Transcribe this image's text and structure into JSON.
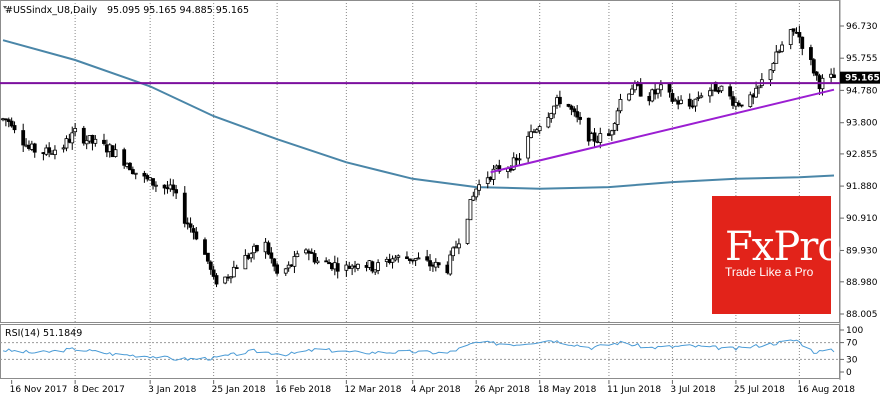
{
  "header": {
    "symbol": "#USSindx_U8,Daily",
    "ohlc": "95.095 95.165 94.885 95.165"
  },
  "rsi_panel": {
    "label": "RSI(14) 51.1849",
    "ticks": [
      "100",
      "70",
      "30",
      "0"
    ]
  },
  "price_axis": {
    "ticks": [
      "96.730",
      "95.755",
      "94.780",
      "93.800",
      "92.855",
      "91.880",
      "90.910",
      "89.930",
      "88.980",
      "88.005"
    ],
    "current_price": "95.165"
  },
  "time_axis": {
    "labels": [
      "16 Nov 2017",
      "8 Dec 2017",
      "3 Jan 2018",
      "25 Jan 2018",
      "16 Feb 2018",
      "12 Mar 2018",
      "4 Apr 2018",
      "26 Apr 2018",
      "18 May 2018",
      "11 Jun 2018",
      "3 Jul 2018",
      "25 Jul 2018",
      "16 Aug 2018"
    ]
  },
  "logo": {
    "brand": "FxPro",
    "tagline": "Trade Like a Pro"
  },
  "colors": {
    "candle": "#000000",
    "ma_line": "#4a86a8",
    "resistance": "#7b0f9e",
    "trendline": "#9b1ed2",
    "rsi_line": "#4a9bd6",
    "logo_bg": "#e2231a",
    "price_badge": "#000000"
  },
  "chart_data": {
    "type": "candlestick",
    "symbol": "#USSindx_U8",
    "timeframe": "Daily",
    "y_range": [
      88.0,
      97.2
    ],
    "date_range": [
      "2017-11-13",
      "2018-08-28"
    ],
    "close_path": [
      [
        "2017-11-13",
        93.9
      ],
      [
        "2017-11-16",
        93.85
      ],
      [
        "2017-11-22",
        93.0
      ],
      [
        "2017-11-28",
        92.9
      ],
      [
        "2017-12-04",
        93.1
      ],
      [
        "2017-12-08",
        93.5
      ],
      [
        "2017-12-14",
        93.2
      ],
      [
        "2017-12-20",
        93.0
      ],
      [
        "2017-12-26",
        92.6
      ],
      [
        "2017-12-30",
        92.2
      ],
      [
        "2018-01-03",
        92.0
      ],
      [
        "2018-01-07",
        91.9
      ],
      [
        "2018-01-11",
        91.7
      ],
      [
        "2018-01-15",
        90.9
      ],
      [
        "2018-01-19",
        90.4
      ],
      [
        "2018-01-23",
        89.6
      ],
      [
        "2018-01-25",
        89.0
      ],
      [
        "2018-01-29",
        89.1
      ],
      [
        "2018-02-02",
        89.5
      ],
      [
        "2018-02-08",
        89.9
      ],
      [
        "2018-02-12",
        90.1
      ],
      [
        "2018-02-16",
        89.2
      ],
      [
        "2018-02-20",
        89.4
      ],
      [
        "2018-02-26",
        90.0
      ],
      [
        "2018-03-02",
        89.6
      ],
      [
        "2018-03-08",
        89.5
      ],
      [
        "2018-03-12",
        89.4
      ],
      [
        "2018-03-16",
        89.6
      ],
      [
        "2018-03-22",
        89.4
      ],
      [
        "2018-03-28",
        89.7
      ],
      [
        "2018-04-04",
        89.7
      ],
      [
        "2018-04-10",
        89.5
      ],
      [
        "2018-04-16",
        89.4
      ],
      [
        "2018-04-20",
        90.3
      ],
      [
        "2018-04-26",
        91.8
      ],
      [
        "2018-04-30",
        92.2
      ],
      [
        "2018-05-04",
        92.4
      ],
      [
        "2018-05-10",
        92.6
      ],
      [
        "2018-05-14",
        93.3
      ],
      [
        "2018-05-18",
        93.8
      ],
      [
        "2018-05-22",
        94.2
      ],
      [
        "2018-05-26",
        94.6
      ],
      [
        "2018-05-30",
        94.0
      ],
      [
        "2018-06-05",
        93.3
      ],
      [
        "2018-06-11",
        93.4
      ],
      [
        "2018-06-15",
        94.5
      ],
      [
        "2018-06-19",
        94.9
      ],
      [
        "2018-06-25",
        94.6
      ],
      [
        "2018-06-29",
        94.8
      ],
      [
        "2018-07-03",
        94.5
      ],
      [
        "2018-07-09",
        94.3
      ],
      [
        "2018-07-13",
        94.7
      ],
      [
        "2018-07-19",
        94.9
      ],
      [
        "2018-07-25",
        94.4
      ],
      [
        "2018-07-31",
        94.5
      ],
      [
        "2018-08-04",
        95.2
      ],
      [
        "2018-08-08",
        95.8
      ],
      [
        "2018-08-12",
        96.4
      ],
      [
        "2018-08-15",
        96.6
      ],
      [
        "2018-08-19",
        95.8
      ],
      [
        "2018-08-23",
        95.0
      ],
      [
        "2018-08-26",
        95.1
      ],
      [
        "2018-08-28",
        95.165
      ]
    ],
    "moving_average": [
      [
        "2017-11-13",
        96.3
      ],
      [
        "2017-12-08",
        95.7
      ],
      [
        "2018-01-03",
        94.9
      ],
      [
        "2018-01-25",
        94.0
      ],
      [
        "2018-02-16",
        93.3
      ],
      [
        "2018-03-12",
        92.6
      ],
      [
        "2018-04-04",
        92.1
      ],
      [
        "2018-04-26",
        91.85
      ],
      [
        "2018-05-18",
        91.8
      ],
      [
        "2018-06-11",
        91.85
      ],
      [
        "2018-07-03",
        92.0
      ],
      [
        "2018-07-25",
        92.1
      ],
      [
        "2018-08-16",
        92.15
      ],
      [
        "2018-08-28",
        92.2
      ]
    ],
    "resistance_level": 95.0,
    "support_trendline": [
      [
        "2018-05-01",
        92.3
      ],
      [
        "2018-08-28",
        94.8
      ]
    ],
    "rsi": {
      "name": "RSI(14)",
      "last": 51.1849,
      "levels": [
        30,
        70
      ],
      "range": [
        0,
        100
      ],
      "path": [
        [
          "2017-11-13",
          52
        ],
        [
          "2017-11-25",
          45
        ],
        [
          "2017-12-08",
          55
        ],
        [
          "2017-12-22",
          42
        ],
        [
          "2018-01-03",
          38
        ],
        [
          "2018-01-13",
          30
        ],
        [
          "2018-01-25",
          33
        ],
        [
          "2018-02-08",
          50
        ],
        [
          "2018-02-20",
          42
        ],
        [
          "2018-03-02",
          54
        ],
        [
          "2018-03-16",
          46
        ],
        [
          "2018-04-04",
          48
        ],
        [
          "2018-04-16",
          45
        ],
        [
          "2018-04-26",
          70
        ],
        [
          "2018-05-10",
          66
        ],
        [
          "2018-05-22",
          76
        ],
        [
          "2018-06-05",
          58
        ],
        [
          "2018-06-15",
          70
        ],
        [
          "2018-06-25",
          58
        ],
        [
          "2018-07-09",
          62
        ],
        [
          "2018-07-25",
          55
        ],
        [
          "2018-08-04",
          65
        ],
        [
          "2018-08-15",
          76
        ],
        [
          "2018-08-21",
          48
        ],
        [
          "2018-08-28",
          51.18
        ]
      ]
    }
  }
}
